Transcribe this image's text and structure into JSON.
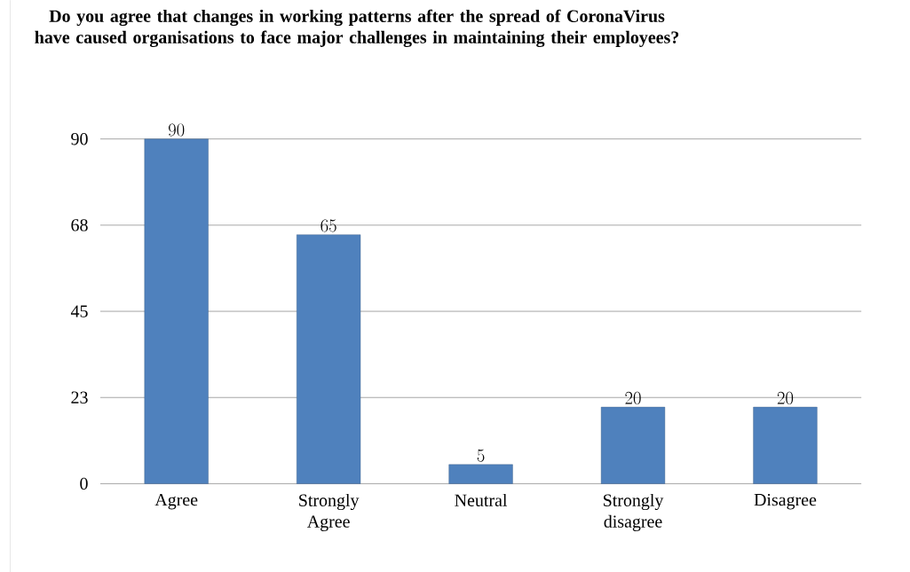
{
  "chart_data": {
    "type": "bar",
    "title": "Do you agree that changes in working patterns after the spread of CoronaVirus have caused organisations to face major challenges in maintaining their employees?",
    "categories": [
      "Agree",
      "Strongly Agree",
      "Neutral",
      "Strongly disagree",
      "Disagree"
    ],
    "values": [
      90,
      65,
      5,
      20,
      20
    ],
    "color": "#4f81bd",
    "ylim": [
      0,
      90
    ],
    "yticks": [
      0,
      {
        "value": 22.5,
        "label": "23"
      },
      45,
      {
        "value": 67.5,
        "label": "68"
      },
      90
    ],
    "grid": "y",
    "data_labels": true
  }
}
